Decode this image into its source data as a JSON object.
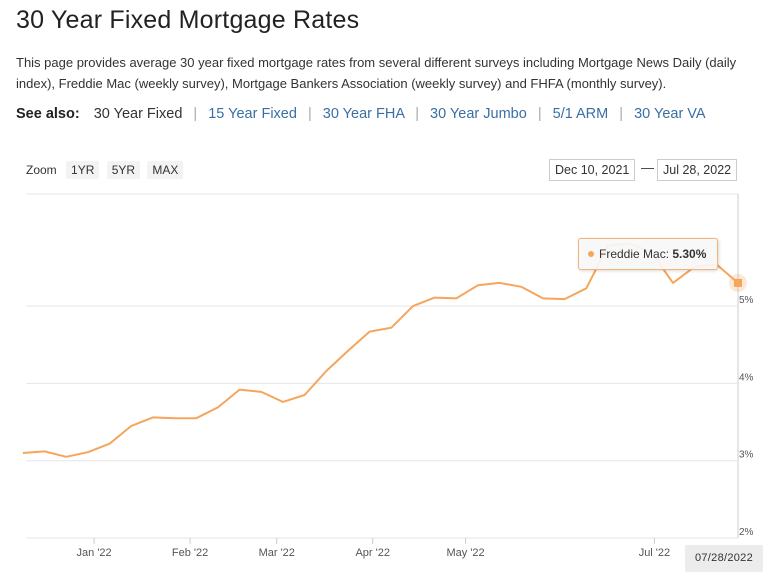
{
  "page": {
    "title": "30 Year Fixed Mortgage Rates",
    "description": "This page provides average 30 year fixed mortgage rates from several different surveys including Mortgage News Daily (daily index), Freddie Mac (weekly survey), Mortgage Bankers Association (weekly survey) and FHFA (monthly survey)."
  },
  "see_also": {
    "label": "See also:",
    "links": [
      {
        "label": "30 Year Fixed",
        "current": true
      },
      {
        "label": "15 Year Fixed",
        "current": false
      },
      {
        "label": "30 Year FHA",
        "current": false
      },
      {
        "label": "30 Year Jumbo",
        "current": false
      },
      {
        "label": "5/1 ARM",
        "current": false
      },
      {
        "label": "30 Year VA",
        "current": false
      }
    ]
  },
  "zoom": {
    "label": "Zoom",
    "buttons": [
      "1YR",
      "5YR",
      "MAX"
    ]
  },
  "range": {
    "from": "Dec 10, 2021",
    "separator": "—",
    "to": "Jul 28, 2022"
  },
  "tooltip": {
    "series": "Freddie Mac:",
    "value": "5.30%"
  },
  "date_flag": "07/28/2022",
  "colors": {
    "series": "#f5a55c",
    "link": "#3a6fa4"
  },
  "chart_data": {
    "type": "line",
    "x_range": [
      "2021-12-10",
      "2022-07-28"
    ],
    "ylim": [
      2,
      6.45
    ],
    "y_ticks": [
      {
        "v": 2,
        "label": "2%"
      },
      {
        "v": 3,
        "label": "3%"
      },
      {
        "v": 4,
        "label": "4%"
      },
      {
        "v": 5,
        "label": "5%"
      }
    ],
    "x_ticks": [
      {
        "date": "2022-01-01",
        "label": "Jan '22"
      },
      {
        "date": "2022-02-01",
        "label": "Feb '22"
      },
      {
        "date": "2022-03-01",
        "label": "Mar '22"
      },
      {
        "date": "2022-04-01",
        "label": "Apr '22"
      },
      {
        "date": "2022-05-01",
        "label": "May '22"
      },
      {
        "date": "2022-07-01",
        "label": "Jul '22"
      }
    ],
    "grid": true,
    "series": [
      {
        "name": "Freddie Mac",
        "points": [
          [
            "2021-12-09",
            3.1
          ],
          [
            "2021-12-16",
            3.12
          ],
          [
            "2021-12-23",
            3.05
          ],
          [
            "2021-12-30",
            3.11
          ],
          [
            "2022-01-06",
            3.22
          ],
          [
            "2022-01-13",
            3.45
          ],
          [
            "2022-01-20",
            3.56
          ],
          [
            "2022-01-27",
            3.55
          ],
          [
            "2022-02-03",
            3.55
          ],
          [
            "2022-02-10",
            3.69
          ],
          [
            "2022-02-17",
            3.92
          ],
          [
            "2022-02-24",
            3.89
          ],
          [
            "2022-03-03",
            3.76
          ],
          [
            "2022-03-10",
            3.85
          ],
          [
            "2022-03-17",
            4.16
          ],
          [
            "2022-03-24",
            4.42
          ],
          [
            "2022-03-31",
            4.67
          ],
          [
            "2022-04-07",
            4.72
          ],
          [
            "2022-04-14",
            5.0
          ],
          [
            "2022-04-21",
            5.11
          ],
          [
            "2022-04-28",
            5.1
          ],
          [
            "2022-05-05",
            5.27
          ],
          [
            "2022-05-12",
            5.3
          ],
          [
            "2022-05-19",
            5.25
          ],
          [
            "2022-05-26",
            5.1
          ],
          [
            "2022-06-02",
            5.09
          ],
          [
            "2022-06-09",
            5.23
          ],
          [
            "2022-06-16",
            5.78
          ],
          [
            "2022-06-23",
            5.81
          ],
          [
            "2022-06-30",
            5.7
          ],
          [
            "2022-07-07",
            5.3
          ],
          [
            "2022-07-14",
            5.51
          ],
          [
            "2022-07-21",
            5.54
          ],
          [
            "2022-07-28",
            5.3
          ]
        ]
      }
    ]
  }
}
